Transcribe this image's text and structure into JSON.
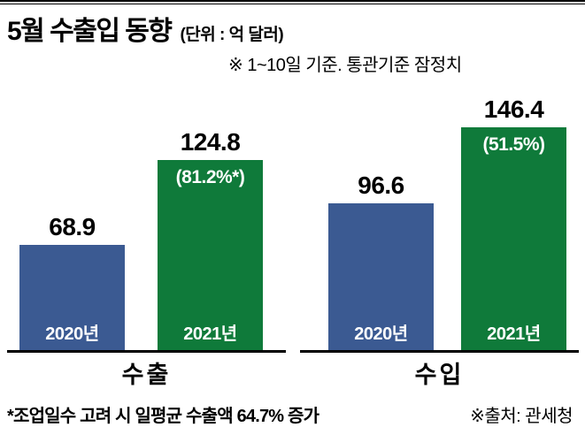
{
  "header": {
    "title": "5월 수출입 동향",
    "unit": "(단위 : 억 달러)",
    "note": "※ 1~10일 기준. 통관기준 잠정치"
  },
  "chart_data": {
    "type": "bar",
    "title": "5월 수출입 동향",
    "unit": "억 달러",
    "categories": [
      "수출",
      "수입"
    ],
    "series": [
      {
        "name": "2020년",
        "values": [
          68.9,
          96.6
        ],
        "color": "#3b5a92"
      },
      {
        "name": "2021년",
        "values": [
          124.8,
          146.4
        ],
        "color": "#0f7a3a"
      }
    ],
    "annotations": [
      {
        "target": "수출 2021년",
        "text": "(81.2%*)"
      },
      {
        "target": "수입 2021년",
        "text": "(51.5%)"
      }
    ],
    "ylim": [
      0,
      146.4
    ],
    "grid": false,
    "legend": "none",
    "value_labels": "above-bars",
    "year_labels": "inside-bar-bottom"
  },
  "colors": {
    "bar_2020": "#3b5a92",
    "bar_2021": "#0f7a3a",
    "axis": "#000000"
  },
  "footer": {
    "footnote": "*조업일수 고려 시 일평균 수출액 64.7% 증가",
    "source": "※출처: 관세청"
  }
}
